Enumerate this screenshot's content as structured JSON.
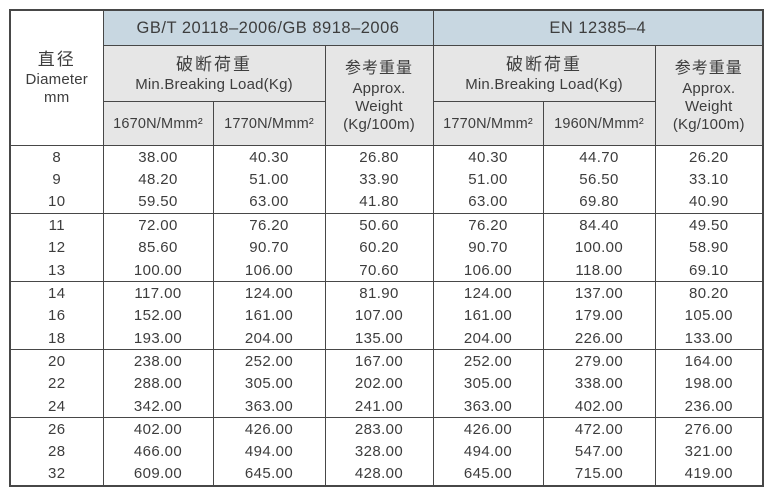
{
  "colors": {
    "header_blue": "#c8d7e1",
    "header_gray": "#e6e6e6",
    "border": "#474747",
    "text": "#3d3d3d"
  },
  "header": {
    "diameter": {
      "zh": "直径",
      "en": "Diameter",
      "unit": "mm"
    },
    "gb": {
      "title": "GB/T 20118–2006/GB 8918–2006",
      "breaking_zh": "破断荷重",
      "breaking_en": "Min.Breaking Load(Kg)",
      "grade1": "1670N/Mmm²",
      "grade2": "1770N/Mmm²",
      "weight_zh": "参考重量",
      "weight_l1": "Approx.",
      "weight_l2": "Weight",
      "weight_l3": "(Kg/100m)"
    },
    "en": {
      "title": "EN 12385–4",
      "breaking_zh": "破断荷重",
      "breaking_en": "Min.Breaking Load(Kg)",
      "grade1": "1770N/Mmm²",
      "grade2": "1960N/Mmm²",
      "weight_zh": "参考重量",
      "weight_l1": "Approx.",
      "weight_l2": "Weight",
      "weight_l3": "(Kg/100m)"
    }
  },
  "body": {
    "groups": [
      [
        {
          "d": "8",
          "v": [
            "38.00",
            "40.30",
            "26.80",
            "40.30",
            "44.70",
            "26.20"
          ]
        },
        {
          "d": "9",
          "v": [
            "48.20",
            "51.00",
            "33.90",
            "51.00",
            "56.50",
            "33.10"
          ]
        },
        {
          "d": "10",
          "v": [
            "59.50",
            "63.00",
            "41.80",
            "63.00",
            "69.80",
            "40.90"
          ]
        }
      ],
      [
        {
          "d": "11",
          "v": [
            "72.00",
            "76.20",
            "50.60",
            "76.20",
            "84.40",
            "49.50"
          ]
        },
        {
          "d": "12",
          "v": [
            "85.60",
            "90.70",
            "60.20",
            "90.70",
            "100.00",
            "58.90"
          ]
        },
        {
          "d": "13",
          "v": [
            "100.00",
            "106.00",
            "70.60",
            "106.00",
            "118.00",
            "69.10"
          ]
        }
      ],
      [
        {
          "d": "14",
          "v": [
            "117.00",
            "124.00",
            "81.90",
            "124.00",
            "137.00",
            "80.20"
          ]
        },
        {
          "d": "16",
          "v": [
            "152.00",
            "161.00",
            "107.00",
            "161.00",
            "179.00",
            "105.00"
          ]
        },
        {
          "d": "18",
          "v": [
            "193.00",
            "204.00",
            "135.00",
            "204.00",
            "226.00",
            "133.00"
          ]
        }
      ],
      [
        {
          "d": "20",
          "v": [
            "238.00",
            "252.00",
            "167.00",
            "252.00",
            "279.00",
            "164.00"
          ]
        },
        {
          "d": "22",
          "v": [
            "288.00",
            "305.00",
            "202.00",
            "305.00",
            "338.00",
            "198.00"
          ]
        },
        {
          "d": "24",
          "v": [
            "342.00",
            "363.00",
            "241.00",
            "363.00",
            "402.00",
            "236.00"
          ]
        }
      ],
      [
        {
          "d": "26",
          "v": [
            "402.00",
            "426.00",
            "283.00",
            "426.00",
            "472.00",
            "276.00"
          ]
        },
        {
          "d": "28",
          "v": [
            "466.00",
            "494.00",
            "328.00",
            "494.00",
            "547.00",
            "321.00"
          ]
        },
        {
          "d": "32",
          "v": [
            "609.00",
            "645.00",
            "428.00",
            "645.00",
            "715.00",
            "419.00"
          ]
        }
      ]
    ]
  }
}
